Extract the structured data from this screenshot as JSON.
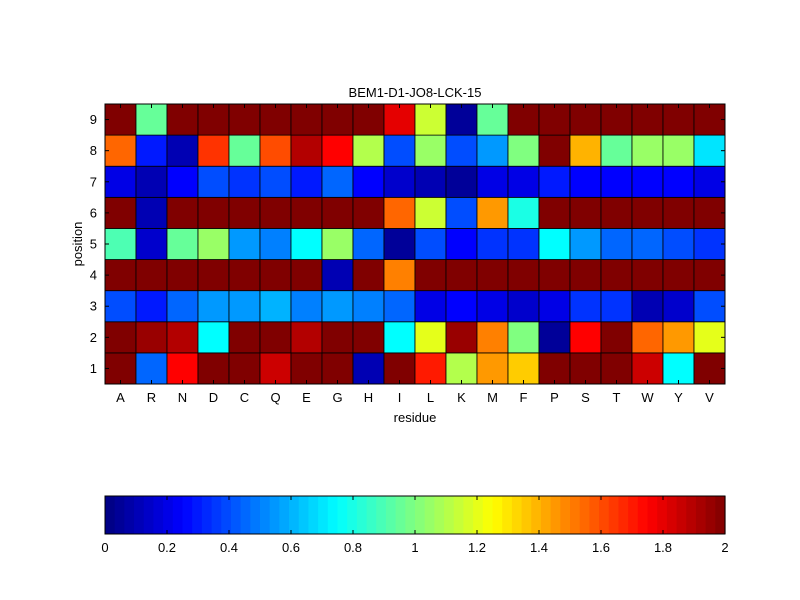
{
  "chart_data": {
    "type": "heatmap",
    "title": "BEM1-D1-JO8-LCK-15",
    "xlabel": "residue",
    "ylabel": "position",
    "x": [
      "A",
      "R",
      "N",
      "D",
      "C",
      "Q",
      "E",
      "G",
      "H",
      "I",
      "L",
      "K",
      "M",
      "F",
      "P",
      "S",
      "T",
      "W",
      "Y",
      "V"
    ],
    "y": [
      "1",
      "2",
      "3",
      "4",
      "5",
      "6",
      "7",
      "8",
      "9"
    ],
    "values": [
      [
        2.0,
        0.45,
        1.75,
        2.0,
        2.0,
        1.85,
        2.0,
        2.0,
        0.1,
        2.0,
        1.7,
        1.1,
        1.45,
        1.35,
        2.0,
        2.0,
        2.0,
        1.85,
        0.75,
        2.0
      ],
      [
        2.0,
        1.95,
        1.9,
        0.75,
        2.0,
        2.0,
        1.9,
        2.0,
        2.0,
        0.75,
        1.2,
        1.95,
        1.5,
        1.0,
        0.05,
        1.75,
        2.0,
        1.55,
        1.45,
        1.2
      ],
      [
        0.4,
        0.3,
        0.45,
        0.55,
        0.55,
        0.6,
        0.5,
        0.55,
        0.5,
        0.45,
        0.2,
        0.25,
        0.2,
        0.15,
        0.2,
        0.35,
        0.35,
        0.1,
        0.15,
        0.4
      ],
      [
        2.0,
        2.0,
        2.0,
        2.0,
        2.0,
        2.0,
        2.0,
        0.1,
        2.0,
        1.5,
        2.0,
        2.0,
        2.0,
        2.0,
        2.0,
        2.0,
        2.0,
        2.0,
        2.0,
        2.0
      ],
      [
        0.9,
        0.15,
        0.95,
        1.05,
        0.55,
        0.5,
        0.75,
        1.05,
        0.45,
        0.05,
        0.4,
        0.25,
        0.35,
        0.35,
        0.75,
        0.55,
        0.45,
        0.45,
        0.4,
        0.35
      ],
      [
        2.0,
        0.1,
        2.0,
        2.0,
        2.0,
        2.0,
        2.0,
        2.0,
        2.0,
        1.55,
        1.15,
        0.4,
        1.45,
        0.8,
        2.0,
        2.0,
        2.0,
        2.0,
        2.0,
        2.0
      ],
      [
        0.2,
        0.1,
        0.25,
        0.4,
        0.35,
        0.4,
        0.3,
        0.45,
        0.25,
        0.15,
        0.1,
        0.05,
        0.2,
        0.2,
        0.3,
        0.25,
        0.25,
        0.25,
        0.25,
        0.2
      ],
      [
        1.55,
        0.3,
        0.1,
        1.65,
        0.95,
        1.6,
        1.9,
        1.75,
        1.1,
        0.4,
        1.05,
        0.4,
        0.55,
        1.0,
        2.0,
        1.4,
        0.95,
        1.05,
        1.05,
        0.7
      ],
      [
        2.0,
        0.95,
        2.0,
        2.0,
        2.0,
        2.0,
        2.0,
        2.0,
        2.0,
        1.8,
        1.15,
        0.05,
        0.95,
        2.0,
        2.0,
        2.0,
        2.0,
        2.0,
        2.0,
        2.0
      ]
    ],
    "zlim": [
      0,
      2
    ],
    "colormap": "jet",
    "colorbar": {
      "placement": "bottom",
      "ticks": [
        0,
        0.2,
        0.4,
        0.6,
        0.8,
        1,
        1.2,
        1.4,
        1.6,
        1.8,
        2
      ],
      "tick_labels": [
        "0",
        "0.2",
        "0.4",
        "0.6",
        "0.8",
        "1",
        "1.2",
        "1.4",
        "1.6",
        "1.8",
        "2"
      ]
    },
    "grid": false,
    "legend": "none"
  }
}
